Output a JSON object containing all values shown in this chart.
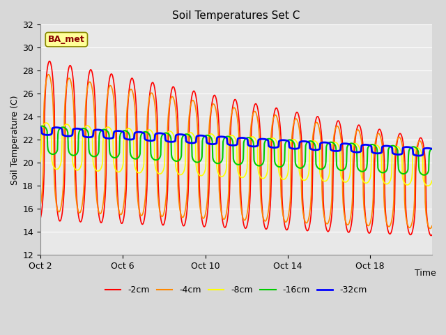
{
  "title": "Soil Temperatures Set C",
  "xlabel": "Time",
  "ylabel": "Soil Temperature (C)",
  "ylim": [
    12,
    32
  ],
  "yticks": [
    12,
    14,
    16,
    18,
    20,
    22,
    24,
    26,
    28,
    30,
    32
  ],
  "outer_bg": "#d8d8d8",
  "plot_bg_color": "#e8e8e8",
  "grid_color": "#ffffff",
  "legend_labels": [
    "-2cm",
    "-4cm",
    "-8cm",
    "-16cm",
    "-32cm"
  ],
  "line_colors": [
    "#ff0000",
    "#ff8800",
    "#ffff00",
    "#00cc00",
    "#0000ff"
  ],
  "line_widths": [
    1.2,
    1.2,
    1.2,
    1.5,
    2.0
  ],
  "annotation_text": "BA_met",
  "annotation_color": "#880000",
  "annotation_bg": "#ffff99",
  "x_tick_labels": [
    "Oct 2",
    "Oct 6",
    "Oct 10",
    "Oct 14",
    "Oct 18"
  ],
  "x_tick_days": [
    2,
    6,
    10,
    14,
    18
  ],
  "n_days": 19
}
